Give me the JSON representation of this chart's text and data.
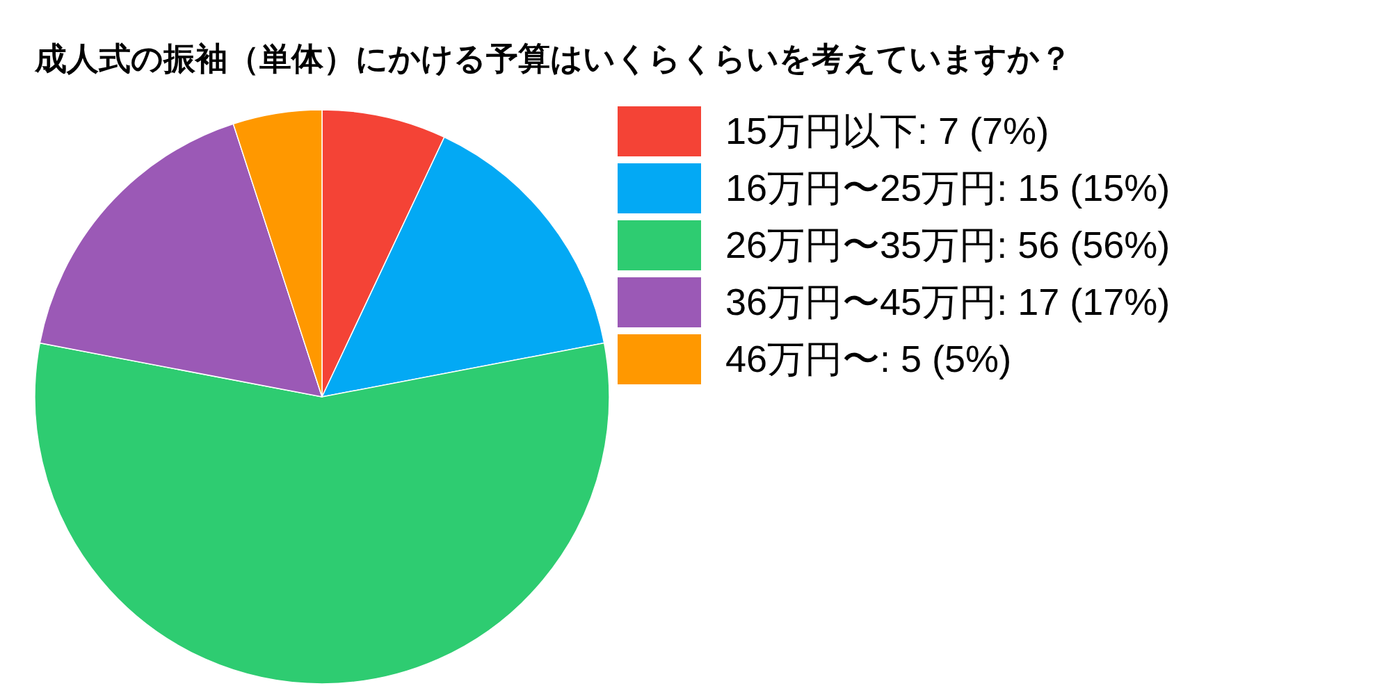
{
  "chart_data": {
    "type": "pie",
    "title": "成人式の振袖（単体）にかける予算はいくらくらいを考えていますか？",
    "categories": [
      "15万円以下",
      "16万円〜25万円",
      "26万円〜35万円",
      "36万円〜45万円",
      "46万円〜"
    ],
    "values": [
      7,
      15,
      56,
      17,
      5
    ],
    "value_labels": [
      "7 (7%)",
      "15 (15%)",
      "56 (56%)",
      "17 (17%)",
      "5 (5%)"
    ],
    "colors": [
      "#f44336",
      "#03a9f4",
      "#2ecc71",
      "#9b59b6",
      "#ff9800"
    ],
    "legend": "right"
  }
}
